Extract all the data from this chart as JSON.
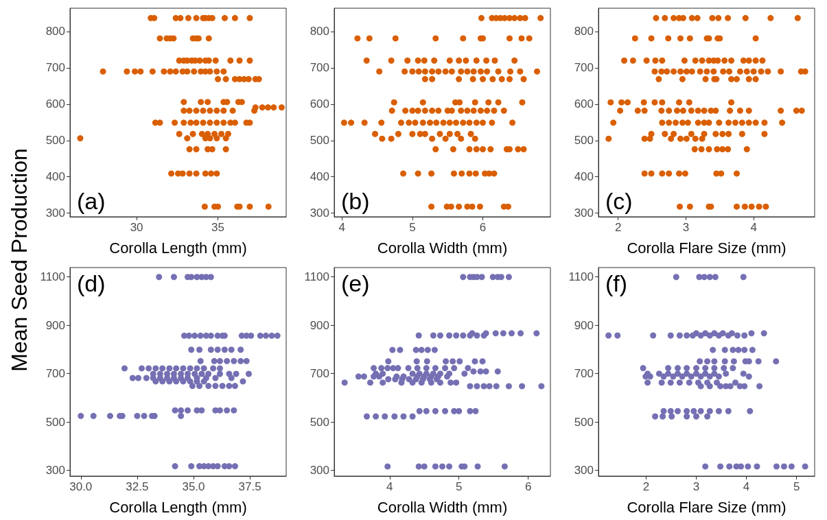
{
  "chart_data": [
    {
      "type": "scatter",
      "ylabel": "Mean Seed Production",
      "xlabel": "Corolla Length (mm)",
      "annotations": [
        "(a)"
      ],
      "color": "#d95f02",
      "marker": "circle",
      "grid": false,
      "xlim": [
        25.9,
        39.2
      ],
      "ylim": [
        290,
        864
      ],
      "xticks": [
        30,
        35
      ],
      "yticks": [
        300,
        400,
        500,
        600,
        700,
        800
      ],
      "x": [
        30.87,
        31.08,
        32.41,
        32.69,
        33.18,
        33.67,
        34.09,
        34.23,
        34.44,
        34.65,
        35.42,
        36.05,
        36.96,
        31.43,
        31.85,
        32.06,
        32.27,
        33.46,
        33.67,
        33.81,
        34.44,
        32.62,
        32.9,
        33.11,
        33.39,
        33.6,
        33.88,
        34.23,
        34.44,
        34.86,
        35.77,
        36.33,
        36.96,
        27.93,
        29.4,
        29.89,
        30.24,
        30.98,
        31.68,
        32.06,
        32.41,
        32.83,
        33.11,
        33.53,
        33.95,
        34.23,
        34.51,
        34.93,
        35.35,
        35,
        35.49,
        36.05,
        36.33,
        36.61,
        36.89,
        37.31,
        37.52,
        32.9,
        33.95,
        34.37,
        35.35,
        35.56,
        36.26,
        36.47,
        37.31,
        37.73,
        38.08,
        38.43,
        38.92,
        32.9,
        33.25,
        33.67,
        34.09,
        34.51,
        34.93,
        35.35,
        35.91,
        37.24,
        31.15,
        31.43,
        32.34,
        32.9,
        33.32,
        33.67,
        34.09,
        34.51,
        34.93,
        35.35,
        35.77,
        36.05,
        36.75,
        36.96,
        32.62,
        33.46,
        34.02,
        34.37,
        34.79,
        35.21,
        35.63,
        26.53,
        33.11,
        34.23,
        34.51,
        34.93,
        35.49,
        33.25,
        33.67,
        34.37,
        34.65,
        35.49,
        32.13,
        32.55,
        32.83,
        33.25,
        33.67,
        34.23,
        34.58,
        34.93,
        34.19,
        34.79,
        35,
        36.19,
        36.33,
        36.96,
        38.11
      ],
      "values": [
        837,
        837,
        837,
        837,
        837,
        837,
        837,
        837,
        837,
        837,
        837,
        837,
        837,
        781,
        781,
        781,
        781,
        781,
        781,
        781,
        781,
        720,
        720,
        720,
        720,
        720,
        720,
        720,
        720,
        720,
        720,
        720,
        720,
        690,
        690,
        690,
        690,
        690,
        690,
        690,
        690,
        690,
        690,
        690,
        690,
        690,
        690,
        690,
        690,
        669,
        669,
        669,
        669,
        669,
        669,
        669,
        669,
        606,
        606,
        606,
        606,
        606,
        606,
        606,
        591,
        591,
        591,
        591,
        591,
        582,
        582,
        582,
        582,
        582,
        582,
        582,
        582,
        582,
        549,
        549,
        549,
        549,
        549,
        549,
        549,
        549,
        549,
        549,
        549,
        549,
        549,
        549,
        518,
        518,
        518,
        518,
        518,
        518,
        518,
        506,
        506,
        506,
        506,
        506,
        506,
        476,
        476,
        476,
        476,
        476,
        409,
        409,
        409,
        409,
        409,
        409,
        409,
        409,
        318,
        318,
        318,
        318,
        318,
        318,
        318
      ]
    },
    {
      "type": "scatter",
      "xlabel": "Corolla Width (mm)",
      "annotations": [
        "(b)"
      ],
      "color": "#d95f02",
      "marker": "circle",
      "grid": false,
      "xlim": [
        3.89,
        6.96
      ],
      "ylim": [
        290,
        864
      ],
      "xticks": [
        4,
        5,
        6
      ],
      "yticks": [
        300,
        400,
        500,
        600,
        700,
        800
      ],
      "x": [
        5.98,
        6.13,
        6.19,
        6.25,
        6.31,
        6.38,
        6.45,
        6.53,
        6.6,
        6.82,
        4.22,
        4.39,
        4.76,
        5.33,
        5.72,
        5.97,
        6,
        6.38,
        6.55,
        6.66,
        4.35,
        4.7,
        4.93,
        5.08,
        5.17,
        5.31,
        5.53,
        5.66,
        5.76,
        5.91,
        6.05,
        6.17,
        6.45,
        4.53,
        4.89,
        5,
        5.09,
        5.18,
        5.28,
        5.37,
        5.47,
        5.56,
        5.69,
        5.78,
        5.87,
        5.97,
        6.06,
        6.22,
        6.39,
        6.53,
        6.77,
        5.18,
        5.28,
        5.66,
        5.86,
        6,
        6.14,
        6.27,
        6.38,
        6.58,
        4.74,
        5.15,
        5.61,
        5.67,
        5.89,
        6.08,
        6.22,
        6.56,
        4.71,
        4.9,
        5,
        5.08,
        5.18,
        5.28,
        5.37,
        5.5,
        5.56,
        5.69,
        5.78,
        5.87,
        5.97,
        6.06,
        6.16,
        6.3,
        4.03,
        4.13,
        4.32,
        4.56,
        4.84,
        4.95,
        5.04,
        5.15,
        5.25,
        5.34,
        5.44,
        5.53,
        5.62,
        5.72,
        5.81,
        5.91,
        6,
        6.13,
        6.42,
        4.47,
        4.8,
        5,
        5.11,
        5.18,
        5.39,
        5.53,
        5.64,
        5.83,
        4.57,
        4.7,
        5.28,
        5.47,
        5.69,
        5.89,
        5.33,
        5.58,
        5.81,
        5.91,
        6,
        6.11,
        6.34,
        6.38,
        6.5,
        6.58,
        4.87,
        5.08,
        5.27,
        5.59,
        5.7,
        5.81,
        5.9,
        6.03,
        6.09,
        6.16,
        5.27,
        5.49,
        5.55,
        5.66,
        5.78,
        5.85,
        5.96,
        6.3,
        6.36
      ],
      "values": [
        837,
        837,
        837,
        837,
        837,
        837,
        837,
        837,
        837,
        837,
        781,
        781,
        781,
        781,
        781,
        781,
        781,
        781,
        781,
        781,
        720,
        720,
        720,
        720,
        720,
        720,
        720,
        720,
        720,
        720,
        720,
        720,
        720,
        690,
        690,
        690,
        690,
        690,
        690,
        690,
        690,
        690,
        690,
        690,
        690,
        690,
        690,
        690,
        690,
        690,
        690,
        669,
        669,
        669,
        669,
        669,
        669,
        669,
        669,
        669,
        605,
        605,
        605,
        605,
        605,
        605,
        605,
        605,
        582,
        582,
        582,
        582,
        582,
        582,
        582,
        582,
        582,
        582,
        582,
        582,
        582,
        582,
        582,
        582,
        549,
        549,
        549,
        549,
        549,
        549,
        549,
        549,
        549,
        549,
        549,
        549,
        549,
        549,
        549,
        549,
        549,
        549,
        549,
        518,
        518,
        518,
        518,
        518,
        518,
        518,
        518,
        518,
        505,
        505,
        505,
        505,
        505,
        505,
        476,
        476,
        476,
        476,
        476,
        476,
        476,
        476,
        476,
        476,
        409,
        409,
        409,
        409,
        409,
        409,
        409,
        409,
        409,
        409,
        318,
        318,
        318,
        318,
        318,
        318,
        318,
        318,
        318
      ]
    },
    {
      "type": "scatter",
      "xlabel": "Corolla Flare Size (mm)",
      "annotations": [
        "(c)"
      ],
      "color": "#d95f02",
      "marker": "circle",
      "grid": false,
      "xlim": [
        1.71,
        4.9
      ],
      "ylim": [
        290,
        864
      ],
      "xticks": [
        2,
        3,
        4
      ],
      "yticks": [
        300,
        400,
        500,
        600,
        700,
        800
      ],
      "x": [
        2.56,
        2.69,
        2.82,
        2.9,
        2.96,
        3.09,
        3.17,
        3.39,
        3.48,
        3.62,
        3.88,
        4.25,
        4.65,
        2.25,
        2.49,
        2.74,
        2.92,
        3.06,
        3.31,
        3.34,
        3.47,
        3.5,
        4.03,
        2.09,
        2.22,
        2.42,
        2.55,
        2.65,
        2.98,
        3.14,
        3.24,
        3.34,
        3.41,
        3.47,
        3.57,
        3.67,
        3.85,
        3.93,
        4.03,
        4.13,
        2.54,
        2.64,
        2.72,
        2.82,
        2.92,
        3.01,
        3.09,
        3.21,
        3.31,
        3.41,
        3.55,
        3.64,
        3.8,
        3.9,
        4,
        4.11,
        4.21,
        4.4,
        4.7,
        4.76,
        2.6,
        2.95,
        3.29,
        3.42,
        3.45,
        3.67,
        3.75,
        3.93,
        4.03,
        1.89,
        2.05,
        2.14,
        2.38,
        2.54,
        2.65,
        2.9,
        3.05,
        3.67,
        2.03,
        2.29,
        2.39,
        2.64,
        2.75,
        2.87,
        2.96,
        3.08,
        3.18,
        3.27,
        3.37,
        3.44,
        3.65,
        3.8,
        3.93,
        4.4,
        4.63,
        4.71,
        1.93,
        2.65,
        2.75,
        2.85,
        2.95,
        3.03,
        3.18,
        3.27,
        3.34,
        3.49,
        3.63,
        3.73,
        3.83,
        3.93,
        4.03,
        4.16,
        4.42,
        2.49,
        2.69,
        2.82,
        3.08,
        3.27,
        3.44,
        3.54,
        3.63,
        3.83,
        4.16,
        1.86,
        2.39,
        2.47,
        2.78,
        2.92,
        3.01,
        3.14,
        3.24,
        3.13,
        3.23,
        3.34,
        3.46,
        3.54,
        3.62,
        3.9,
        2.39,
        2.49,
        2.65,
        2.75,
        2.9,
        2.99,
        3.45,
        3.52,
        3.75,
        2.91,
        3.06,
        3.34,
        3.37,
        3.75,
        3.87,
        3.97,
        4.08,
        4.18
      ],
      "values": [
        837,
        837,
        837,
        837,
        837,
        837,
        837,
        837,
        837,
        837,
        837,
        837,
        837,
        781,
        781,
        781,
        781,
        781,
        781,
        781,
        781,
        781,
        781,
        720,
        720,
        720,
        720,
        720,
        720,
        720,
        720,
        720,
        720,
        720,
        720,
        720,
        720,
        720,
        720,
        720,
        690,
        690,
        690,
        690,
        690,
        690,
        690,
        690,
        690,
        690,
        690,
        690,
        690,
        690,
        690,
        690,
        690,
        690,
        690,
        690,
        669,
        669,
        669,
        669,
        669,
        669,
        669,
        669,
        669,
        605,
        605,
        605,
        605,
        605,
        605,
        605,
        605,
        605,
        582,
        582,
        582,
        582,
        582,
        582,
        582,
        582,
        582,
        582,
        582,
        582,
        582,
        582,
        582,
        582,
        582,
        582,
        549,
        549,
        549,
        549,
        549,
        549,
        549,
        549,
        549,
        549,
        549,
        549,
        549,
        549,
        549,
        549,
        549,
        518,
        518,
        518,
        518,
        518,
        518,
        518,
        518,
        518,
        518,
        505,
        505,
        505,
        505,
        505,
        505,
        505,
        505,
        476,
        476,
        476,
        476,
        476,
        476,
        476,
        409,
        409,
        409,
        409,
        409,
        409,
        409,
        409,
        409,
        318,
        318,
        318,
        318,
        318,
        318,
        318,
        318,
        318
      ]
    },
    {
      "type": "scatter",
      "xlabel": "Corolla Length (mm)",
      "annotations": [
        "(d)"
      ],
      "color": "#7570b3",
      "marker": "circle",
      "grid": false,
      "xlim": [
        29.52,
        39.11
      ],
      "ylim": [
        276,
        1139
      ],
      "xticks": [
        {
          "value": 30,
          "label": "30.0"
        },
        32.5,
        {
          "value": 35,
          "label": "35.0"
        },
        37.5
      ],
      "yticks": [
        300,
        500,
        700,
        900,
        1100
      ],
      "x": [
        33.47,
        34.13,
        34.74,
        34.9,
        35.15,
        35.36,
        35.56,
        35.77,
        34.59,
        34.8,
        35.05,
        35.31,
        35.56,
        35.77,
        36.07,
        36.28,
        36.38,
        37.14,
        37.35,
        37.55,
        37.96,
        38.21,
        38.47,
        38.72,
        34.9,
        35.26,
        35.77,
        36.07,
        36.38,
        36.68,
        37.09,
        35.31,
        35.92,
        36.17,
        36.48,
        36.79,
        37.09,
        37.35,
        31.94,
        32.7,
        33.01,
        33.32,
        33.62,
        33.93,
        34.23,
        34.54,
        34.85,
        35.15,
        35.46,
        35.87,
        36.17,
        33.21,
        33.52,
        33.83,
        34.13,
        34.44,
        34.74,
        35.05,
        35.36,
        35.66,
        36.17,
        36.58,
        36.89,
        37.45,
        32.3,
        32.55,
        32.91,
        33.21,
        33.52,
        33.83,
        34.13,
        34.44,
        34.74,
        35.15,
        35.56,
        35.97,
        36.68,
        33.32,
        33.62,
        33.93,
        34.23,
        34.54,
        34.85,
        35.15,
        35.46,
        37.19,
        34.95,
        35.26,
        35.66,
        35.97,
        36.28,
        36.58,
        36.84,
        34.18,
        34.44,
        34.74,
        35.15,
        35.36,
        35.97,
        36.17,
        36.48,
        36.79,
        30,
        30.56,
        31.3,
        31.73,
        31.84,
        32.5,
        32.81,
        33.16,
        33.27,
        34.44,
        34.18,
        34.9,
        35.26,
        35.46,
        35.66,
        35.87,
        36.07,
        36.38,
        36.58,
        36.84
      ],
      "values": [
        1100,
        1100,
        1100,
        1100,
        1100,
        1100,
        1100,
        1100,
        857,
        857,
        857,
        857,
        857,
        857,
        857,
        857,
        857,
        857,
        857,
        857,
        857,
        857,
        857,
        857,
        799,
        799,
        799,
        799,
        799,
        799,
        799,
        752,
        752,
        752,
        752,
        752,
        752,
        752,
        722,
        722,
        722,
        722,
        722,
        722,
        722,
        722,
        722,
        722,
        722,
        722,
        722,
        699,
        699,
        699,
        699,
        699,
        699,
        699,
        699,
        699,
        699,
        699,
        699,
        699,
        682,
        682,
        682,
        682,
        682,
        682,
        682,
        682,
        682,
        682,
        682,
        682,
        682,
        668,
        668,
        668,
        668,
        668,
        668,
        668,
        668,
        668,
        649,
        649,
        649,
        649,
        649,
        649,
        649,
        548,
        548,
        548,
        548,
        548,
        548,
        548,
        548,
        548,
        525,
        525,
        525,
        525,
        525,
        525,
        525,
        525,
        525,
        525,
        317,
        317,
        317,
        317,
        317,
        317,
        317,
        317,
        317,
        317
      ]
    },
    {
      "type": "scatter",
      "xlabel": "Corolla Width (mm)",
      "annotations": [
        "(e)"
      ],
      "color": "#7570b3",
      "marker": "circle",
      "grid": false,
      "xlim": [
        3.2,
        6.32
      ],
      "ylim": [
        276,
        1139
      ],
      "xticks": [
        4,
        5,
        6
      ],
      "yticks": [
        300,
        500,
        700,
        900,
        1100
      ],
      "x": [
        5.06,
        5.16,
        5.21,
        5.26,
        5.33,
        5.49,
        5.56,
        5.61,
        5.72,
        5.19,
        5.39,
        5.53,
        5.64,
        5.76,
        5.89,
        6.12,
        4.42,
        4.63,
        4.73,
        4.86,
        4.96,
        5.06,
        5.16,
        5.26,
        5.36,
        4.04,
        4.15,
        4.38,
        4.46,
        4.55,
        4.65,
        3.98,
        4.39,
        4.54,
        4.81,
        4.91,
        5.01,
        5.23,
        5.34,
        3.77,
        3.88,
        3.97,
        4.05,
        4.12,
        4.27,
        4.4,
        4.53,
        4.66,
        4.8,
        4.93,
        5.13,
        5.21,
        5.31,
        5.39,
        5.56,
        3.8,
        3.9,
        4.33,
        4.43,
        4.53,
        4.63,
        4.73,
        4.86,
        5.08,
        3.55,
        3.63,
        3.77,
        3.85,
        4.1,
        4.2,
        4.4,
        4.5,
        4.6,
        4.7,
        4.83,
        3.98,
        4.08,
        4.18,
        4.28,
        4.38,
        4.48,
        4.58,
        4.68,
        3.35,
        3.72,
        3.9,
        4.17,
        4.33,
        4.46,
        4.6,
        4.73,
        4.88,
        4.96,
        5.16,
        5.26,
        5.36,
        5.44,
        5.54,
        5.72,
        5.91,
        6.19,
        4.43,
        4.53,
        4.66,
        4.8,
        4.93,
        5,
        5.16,
        5.24,
        3.67,
        3.8,
        3.93,
        4.07,
        4.2,
        4.33,
        3.97,
        4.42,
        4.5,
        4.66,
        4.76,
        4.86,
        5.04,
        5.08,
        5.27,
        5.66
      ],
      "values": [
        1100,
        1100,
        1100,
        1100,
        1100,
        1100,
        1100,
        1100,
        1100,
        867,
        867,
        867,
        867,
        867,
        867,
        867,
        858,
        858,
        858,
        858,
        858,
        858,
        858,
        858,
        858,
        798,
        798,
        798,
        798,
        798,
        798,
        751,
        751,
        751,
        751,
        751,
        751,
        751,
        751,
        723,
        723,
        723,
        723,
        723,
        723,
        723,
        723,
        723,
        723,
        723,
        723,
        709,
        709,
        709,
        709,
        700,
        700,
        700,
        700,
        700,
        700,
        700,
        700,
        700,
        688,
        688,
        688,
        688,
        688,
        688,
        688,
        688,
        688,
        688,
        688,
        677,
        677,
        677,
        677,
        677,
        677,
        677,
        677,
        663,
        663,
        663,
        663,
        663,
        663,
        663,
        663,
        663,
        663,
        648,
        648,
        648,
        648,
        648,
        648,
        648,
        648,
        545,
        545,
        545,
        545,
        545,
        545,
        545,
        545,
        523,
        523,
        523,
        523,
        523,
        523,
        316,
        316,
        316,
        316,
        316,
        316,
        316,
        316,
        316,
        316
      ]
    },
    {
      "type": "scatter",
      "xlabel": "Corolla Flare Size (mm)",
      "annotations": [
        "(f)"
      ],
      "color": "#7570b3",
      "marker": "circle",
      "grid": false,
      "xlim": [
        1.05,
        5.36
      ],
      "ylim": [
        276,
        1139
      ],
      "xticks": [
        2,
        3,
        4,
        5
      ],
      "yticks": [
        300,
        500,
        700,
        900,
        1100
      ],
      "x": [
        2.6,
        3.06,
        3.16,
        3.27,
        3.38,
        3.94,
        3,
        3.18,
        3.36,
        3.53,
        3.71,
        4.1,
        4.35,
        1.25,
        1.43,
        2.14,
        2.49,
        2.67,
        2.81,
        2.93,
        3.09,
        3.27,
        3.45,
        3.64,
        3.82,
        3.96,
        3.33,
        3.57,
        3.73,
        3.84,
        3.96,
        4.12,
        3.07,
        3.22,
        3.36,
        3.57,
        3.75,
        3.98,
        4.05,
        4.24,
        4.59,
        1.94,
        2.44,
        2.63,
        2.81,
        3,
        3.18,
        3.36,
        3.55,
        3.73,
        2.03,
        2.26,
        2.44,
        2.63,
        2.81,
        3,
        3.18,
        3.36,
        3.59,
        3.94,
        1.99,
        2.08,
        2.35,
        2.54,
        2.72,
        2.9,
        3.09,
        3.27,
        3.45,
        4.05,
        2.03,
        2.31,
        2.49,
        2.67,
        2.86,
        3.04,
        3.22,
        3.41,
        3.78,
        3.09,
        3.27,
        3.48,
        3.59,
        3.68,
        3.87,
        3.96,
        4.26,
        2.35,
        2.49,
        2.63,
        2.81,
        2.95,
        3.09,
        3.27,
        3.45,
        3.64,
        4.07,
        2.18,
        2.33,
        2.51,
        2.81,
        3,
        3.22,
        3.18,
        3.48,
        3.66,
        3.8,
        3.89,
        4.03,
        4.21,
        4.6,
        4.75,
        4.9,
        5.17
      ],
      "values": [
        1100,
        1100,
        1100,
        1100,
        1100,
        1100,
        867,
        867,
        867,
        867,
        867,
        867,
        867,
        858,
        858,
        858,
        858,
        858,
        858,
        858,
        858,
        858,
        858,
        858,
        858,
        858,
        798,
        798,
        798,
        798,
        798,
        798,
        751,
        751,
        751,
        751,
        751,
        751,
        751,
        751,
        751,
        723,
        723,
        723,
        723,
        723,
        723,
        723,
        723,
        723,
        700,
        700,
        700,
        700,
        700,
        700,
        700,
        700,
        700,
        700,
        688,
        688,
        688,
        688,
        688,
        688,
        688,
        688,
        688,
        688,
        663,
        663,
        663,
        663,
        663,
        663,
        663,
        663,
        663,
        648,
        648,
        648,
        648,
        648,
        648,
        648,
        648,
        545,
        545,
        545,
        545,
        545,
        545,
        545,
        545,
        545,
        545,
        523,
        523,
        523,
        523,
        523,
        523,
        316,
        316,
        316,
        316,
        316,
        316,
        316,
        316,
        316,
        316,
        316
      ]
    }
  ]
}
